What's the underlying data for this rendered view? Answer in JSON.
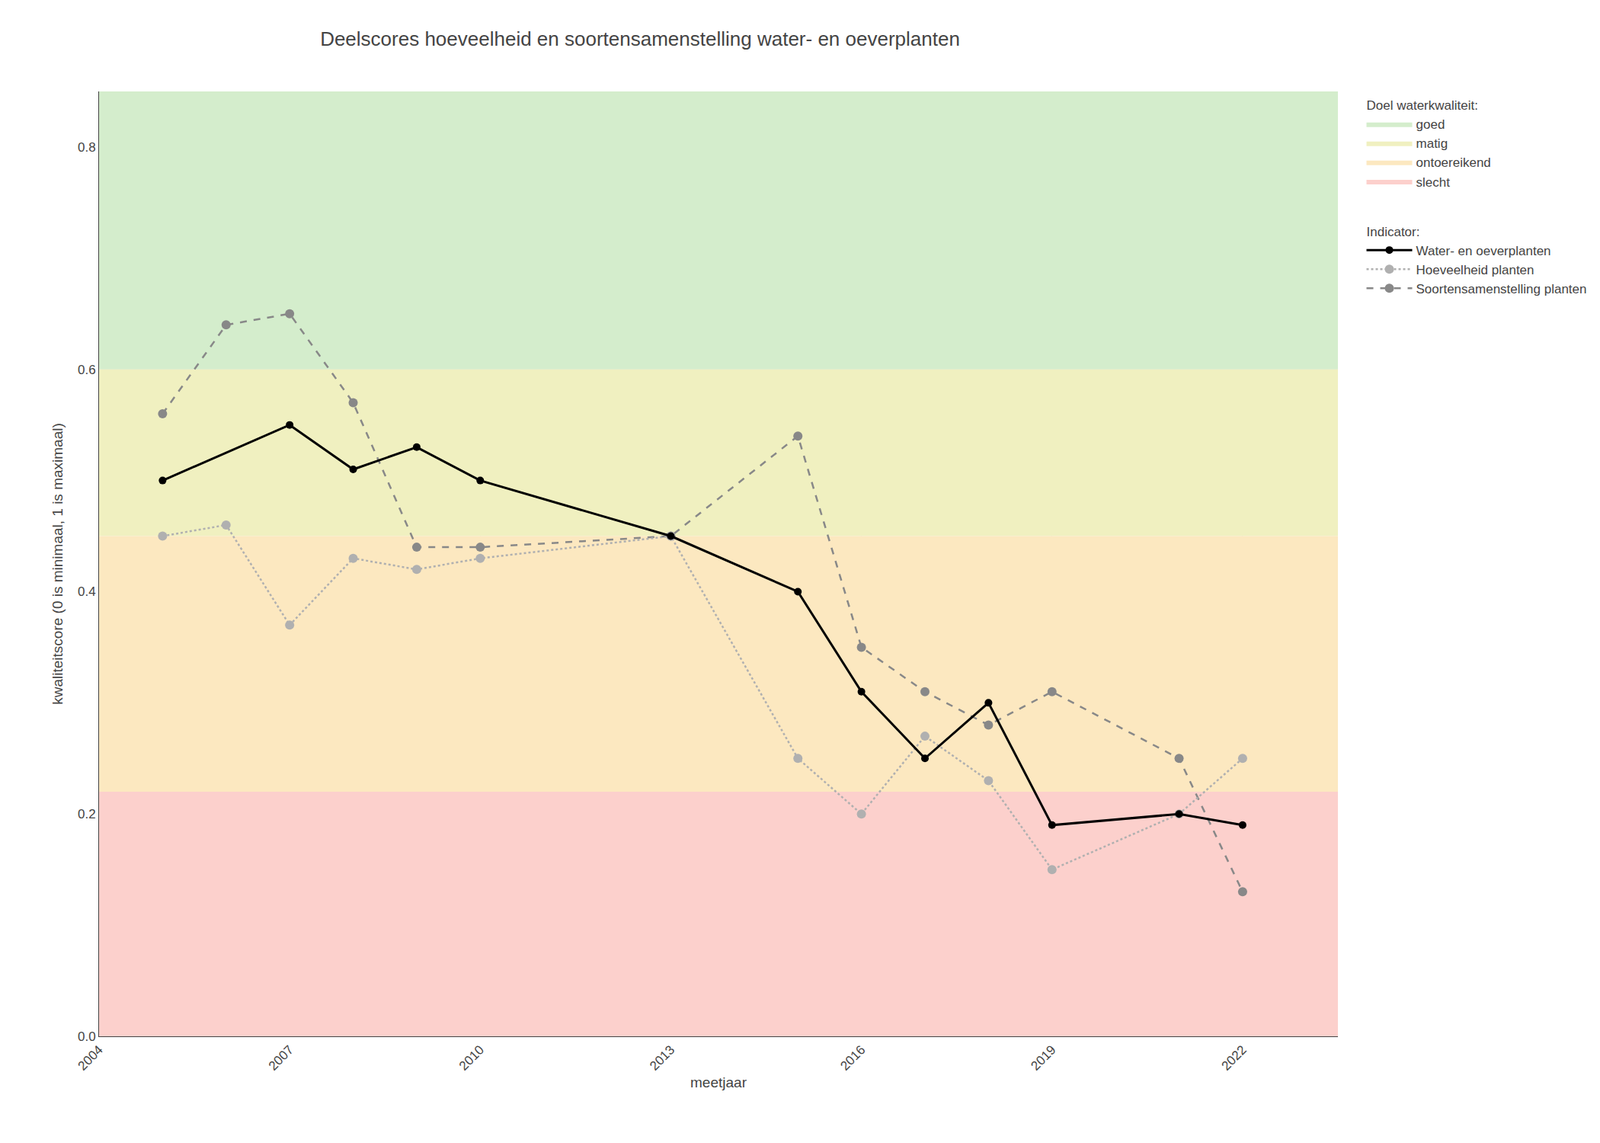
{
  "chart_data": {
    "type": "line",
    "title": "Deelscores hoeveelheid en soortensamenstelling water- en oeverplanten",
    "x_label": "meetjaar",
    "y_label": "kwaliteitscore (0 is minimaal, 1 is maximaal)",
    "xlim": [
      2004,
      2023.5
    ],
    "ylim": [
      0.0,
      0.85
    ],
    "xticks": [
      2004,
      2007,
      2010,
      2013,
      2016,
      2019,
      2022
    ],
    "yticks": [
      {
        "value": 0.0,
        "label": "0.0"
      },
      0.2,
      0.4,
      0.6,
      0.8
    ],
    "grid": true,
    "zones": {
      "title": "Doel waterkwaliteit:",
      "items": [
        {
          "name": "goed",
          "color": "#d4edcc",
          "ymin": 0.6,
          "ymax": 0.85
        },
        {
          "name": "matig",
          "color": "#f0f0c0",
          "ymin": 0.45,
          "ymax": 0.6
        },
        {
          "name": "ontoereikend",
          "color": "#fce8c0",
          "ymin": 0.22,
          "ymax": 0.45
        },
        {
          "name": "slecht",
          "color": "#fcd0cc",
          "ymin": 0.0,
          "ymax": 0.22
        }
      ]
    },
    "series_title": "Indicator:",
    "series": [
      {
        "name": "Soortensamenstelling planten",
        "color": "#888888",
        "line_style": "dashed",
        "marker": "circle",
        "x": [
          2005,
          2006,
          2007,
          2008,
          2009,
          2010,
          2013,
          2015,
          2016,
          2017,
          2018,
          2019,
          2021,
          2022
        ],
        "values": [
          0.56,
          0.64,
          0.65,
          0.57,
          0.44,
          0.44,
          0.45,
          0.54,
          0.35,
          0.31,
          0.28,
          0.31,
          0.25,
          0.13
        ]
      },
      {
        "name": "Hoeveelheid planten",
        "color": "#b0b0b0",
        "line_style": "dotted",
        "marker": "circle",
        "x": [
          2005,
          2006,
          2007,
          2008,
          2009,
          2010,
          2013,
          2015,
          2016,
          2017,
          2018,
          2019,
          2021,
          2022
        ],
        "values": [
          0.45,
          0.46,
          0.37,
          0.43,
          0.42,
          0.43,
          0.45,
          0.25,
          0.2,
          0.27,
          0.23,
          0.15,
          0.2,
          0.25
        ]
      },
      {
        "name": "Water- en oeverplanten",
        "color": "#000000",
        "line_style": "solid",
        "marker": "circle",
        "x": [
          2005,
          2007,
          2008,
          2009,
          2010,
          2013,
          2015,
          2016,
          2017,
          2018,
          2019,
          2021,
          2022
        ],
        "values": [
          0.5,
          0.55,
          0.51,
          0.53,
          0.5,
          0.45,
          0.4,
          0.31,
          0.25,
          0.3,
          0.19,
          0.2,
          0.19
        ]
      }
    ]
  }
}
